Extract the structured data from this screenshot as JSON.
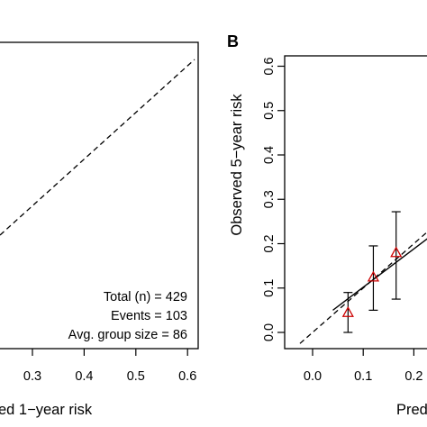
{
  "chart_data": [
    {
      "panel": "",
      "type": "scatter",
      "xlabel": "ed 1−year risk",
      "ylabel": "",
      "x_ticks": [
        "0.3",
        "0.4",
        "0.5",
        "0.6"
      ],
      "x_tick_values": [
        0.3,
        0.4,
        0.5,
        0.6
      ],
      "xlim": [
        0.24,
        0.62
      ],
      "ylim": [
        0.0,
        0.62
      ],
      "reference_line": "dashed diagonal",
      "annotations": [
        "Total (n) = 429",
        "Events = 103",
        "Avg. group size = 86"
      ]
    },
    {
      "panel": "B",
      "type": "scatter",
      "xlabel": "Pred",
      "ylabel": "Observed 5−year risk",
      "x_ticks": [
        "0.0",
        "0.1",
        "0.2"
      ],
      "x_tick_values": [
        0.0,
        0.1,
        0.2
      ],
      "y_ticks": [
        "0.0",
        "0.1",
        "0.2",
        "0.3",
        "0.4",
        "0.5",
        "0.6"
      ],
      "y_tick_values": [
        0.0,
        0.1,
        0.2,
        0.3,
        0.4,
        0.5,
        0.6
      ],
      "xlim": [
        -0.025,
        0.26
      ],
      "ylim": [
        -0.02,
        0.62
      ],
      "points": [
        {
          "x": 0.07,
          "y": 0.045,
          "lo": 0.0,
          "hi": 0.09
        },
        {
          "x": 0.12,
          "y": 0.125,
          "lo": 0.05,
          "hi": 0.195
        },
        {
          "x": 0.165,
          "y": 0.18,
          "lo": 0.075,
          "hi": 0.272
        }
      ],
      "fit_line": {
        "x": [
          0.04,
          0.26
        ],
        "y": [
          0.05,
          0.24
        ]
      },
      "reference_line": "dashed diagonal",
      "marker_color": "#cc0000"
    }
  ]
}
